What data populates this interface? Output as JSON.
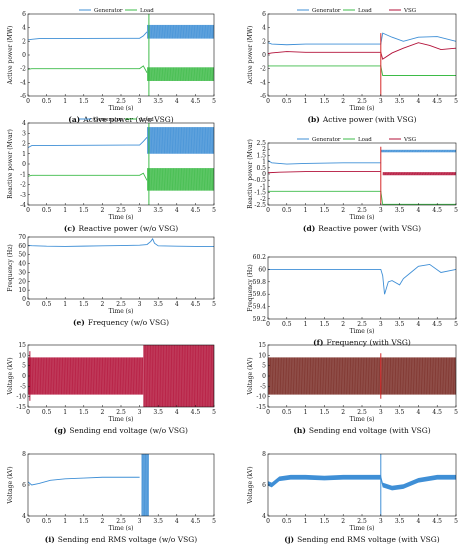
{
  "colors": {
    "generator": "#3f8fd6",
    "load": "#3dbb48",
    "vsg": "#b3123a",
    "voltage_dark": "#7a2b25",
    "marker": "#d62728",
    "axis": "#111111"
  },
  "chart_data": [
    {
      "id": "a",
      "type": "line",
      "caption_letter": "(a)",
      "caption_text": "Active power (w/o VSG)",
      "xlabel": "Time (s)",
      "ylabel": "Active power (MW)",
      "xlim": [
        0,
        5
      ],
      "ylim": [
        -6,
        6
      ],
      "xticks": [
        "0",
        "0.5",
        "1",
        "1.5",
        "2",
        "2.5",
        "3",
        "3.5",
        "4",
        "4.5",
        "5"
      ],
      "yticks": [
        "-6",
        "-4",
        "-2",
        "0",
        "2",
        "4",
        "6"
      ],
      "legend": [
        "Generator",
        "Load"
      ],
      "series": [
        {
          "name": "Generator",
          "color_key": "generator",
          "x": [
            0,
            0.1,
            0.3,
            3.0,
            3.1,
            3.2
          ],
          "y": [
            2.2,
            2.3,
            2.4,
            2.45,
            2.8,
            3.4
          ],
          "band": {
            "x0": 3.2,
            "x1": 5,
            "lo": 2.4,
            "hi": 4.4
          }
        },
        {
          "name": "Load",
          "color_key": "load",
          "x": [
            0,
            0.1,
            3.0,
            3.1,
            3.2
          ],
          "y": [
            -2.1,
            -2.0,
            -2.0,
            -1.6,
            -2.6
          ],
          "band": {
            "x0": 3.2,
            "x1": 5,
            "lo": -3.8,
            "hi": -1.8
          }
        }
      ],
      "spikes": [
        {
          "x": 3.25,
          "lo": -6,
          "hi": 6,
          "color_key": "load"
        }
      ]
    },
    {
      "id": "b",
      "type": "line",
      "caption_letter": "(b)",
      "caption_text": "Active power (with VSG)",
      "xlabel": "Time (s)",
      "ylabel": "Active power (MW)",
      "xlim": [
        0,
        5
      ],
      "ylim": [
        -6,
        6
      ],
      "xticks": [
        "0",
        "0.5",
        "1",
        "1.5",
        "2",
        "2.5",
        "3",
        "3.5",
        "4",
        "4.5",
        "5"
      ],
      "yticks": [
        "-6",
        "-4",
        "-2",
        "0",
        "2",
        "4",
        "6"
      ],
      "legend": [
        "Generator",
        "Load",
        "VSG"
      ],
      "series": [
        {
          "name": "Generator",
          "color_key": "generator",
          "x": [
            0,
            0.1,
            0.5,
            1,
            2,
            3.0,
            3.05,
            3.3,
            3.6,
            4,
            4.5,
            5
          ],
          "y": [
            1.8,
            1.6,
            1.5,
            1.6,
            1.6,
            1.6,
            3.2,
            2.6,
            2.0,
            2.6,
            2.7,
            2.0
          ],
          "band": null
        },
        {
          "name": "Load",
          "color_key": "load",
          "x": [
            0,
            3.0,
            3.05,
            5
          ],
          "y": [
            -1.6,
            -1.6,
            -3.0,
            -3.0
          ],
          "band": null
        },
        {
          "name": "VSG",
          "color_key": "vsg",
          "x": [
            0,
            0.1,
            0.5,
            1,
            2,
            3.0,
            3.05,
            3.3,
            3.6,
            4,
            4.3,
            4.6,
            5
          ],
          "y": [
            0.2,
            0.3,
            0.5,
            0.4,
            0.4,
            0.4,
            -0.6,
            0.3,
            1.0,
            1.8,
            1.4,
            0.8,
            1.0
          ],
          "band": null
        }
      ],
      "spikes": [
        {
          "x": 3.0,
          "lo": -6,
          "hi": 3.2,
          "color_key": "marker"
        }
      ]
    },
    {
      "id": "c",
      "type": "line",
      "caption_letter": "(c)",
      "caption_text": "Reactive power (w/o VSG)",
      "xlabel": "Time (s)",
      "ylabel": "Reactive power (Mvar)",
      "xlim": [
        0,
        5
      ],
      "ylim": [
        -4,
        4
      ],
      "xticks": [
        "0",
        "0.5",
        "1",
        "1.5",
        "2",
        "2.5",
        "3",
        "3.5",
        "4",
        "4.5",
        "5"
      ],
      "yticks": [
        "-4",
        "-3",
        "-2",
        "-1",
        "0",
        "1",
        "2",
        "3",
        "4"
      ],
      "legend": [
        "Generator",
        "Load"
      ],
      "series": [
        {
          "name": "Generator",
          "color_key": "generator",
          "x": [
            0,
            0.1,
            3.0,
            3.1,
            3.2
          ],
          "y": [
            1.6,
            1.8,
            1.85,
            2.2,
            2.6
          ],
          "band": {
            "x0": 3.2,
            "x1": 5,
            "lo": 1.0,
            "hi": 3.6
          }
        },
        {
          "name": "Load",
          "color_key": "load",
          "x": [
            0,
            0.1,
            3.0,
            3.1,
            3.2
          ],
          "y": [
            -1.2,
            -1.1,
            -1.1,
            -0.9,
            -1.6
          ],
          "band": {
            "x0": 3.2,
            "x1": 5,
            "lo": -2.6,
            "hi": -0.4
          }
        }
      ],
      "spikes": [
        {
          "x": 3.25,
          "lo": -4,
          "hi": 4,
          "color_key": "load"
        }
      ]
    },
    {
      "id": "d",
      "type": "line",
      "caption_letter": "(d)",
      "caption_text": "Reactive power (with VSG)",
      "xlabel": "Time (s)",
      "ylabel": "Reactive power (Mvar)",
      "xlim": [
        0,
        5
      ],
      "ylim": [
        -2.5,
        2.5
      ],
      "xticks": [
        "0",
        "0.5",
        "1",
        "1.5",
        "2",
        "2.5",
        "3",
        "3.5",
        "4",
        "4.5",
        "5"
      ],
      "yticks": [
        "-2.5",
        "-2",
        "-1.5",
        "-1",
        "-0.5",
        "0",
        "0.5",
        "1",
        "1.5",
        "2",
        "2.5"
      ],
      "legend": [
        "Generator",
        "Load",
        "VSG"
      ],
      "series": [
        {
          "name": "Generator",
          "color_key": "generator",
          "x": [
            0,
            0.1,
            0.5,
            1,
            2,
            3.0
          ],
          "y": [
            1.1,
            0.9,
            0.8,
            0.85,
            0.9,
            0.9
          ],
          "band": {
            "x0": 3.0,
            "x1": 5,
            "lo": 1.75,
            "hi": 1.95
          }
        },
        {
          "name": "Load",
          "color_key": "load",
          "x": [
            0,
            3.0,
            3.05,
            5
          ],
          "y": [
            -1.4,
            -1.4,
            -2.45,
            -2.45
          ],
          "band": null
        },
        {
          "name": "VSG",
          "color_key": "vsg",
          "x": [
            0,
            0.3,
            1,
            2,
            3.0
          ],
          "y": [
            0.1,
            0.15,
            0.2,
            0.2,
            0.2
          ],
          "band": {
            "x0": 3.05,
            "x1": 5,
            "lo": -0.1,
            "hi": 0.15
          }
        }
      ],
      "spikes": [
        {
          "x": 3.0,
          "lo": -2.5,
          "hi": 2.2,
          "color_key": "marker"
        }
      ]
    },
    {
      "id": "e",
      "type": "line",
      "caption_letter": "(e)",
      "caption_text": "Frequency (w/o VSG)",
      "xlabel": "Time (s)",
      "ylabel": "Frequency (Hz)",
      "xlim": [
        0,
        5
      ],
      "ylim": [
        0,
        70
      ],
      "xticks": [
        "0",
        "0.5",
        "1",
        "1.5",
        "2",
        "2.5",
        "3",
        "3.5",
        "4",
        "4.5",
        "5"
      ],
      "yticks": [
        "0",
        "10",
        "20",
        "30",
        "40",
        "50",
        "60",
        "70"
      ],
      "legend": [],
      "series": [
        {
          "name": "",
          "color_key": "generator",
          "x": [
            0,
            0.1,
            0.5,
            1.0,
            1.5,
            2.0,
            2.5,
            3.0,
            3.2,
            3.3,
            3.35,
            3.4,
            3.5,
            4.0,
            4.5,
            5.0
          ],
          "y": [
            60.5,
            60.2,
            59.6,
            59.4,
            59.7,
            60.0,
            60.3,
            60.8,
            61.5,
            65,
            68,
            63,
            60,
            59.6,
            59.4,
            59.2
          ],
          "band": null
        }
      ],
      "spikes": []
    },
    {
      "id": "f",
      "type": "line",
      "caption_letter": "(f)",
      "caption_text": "Frequency (with VSG)",
      "xlabel": "Time (s)",
      "ylabel": "Frequency (Hz)",
      "xlim": [
        0,
        5
      ],
      "ylim": [
        59.2,
        60.2
      ],
      "xticks": [
        "0",
        "0.5",
        "1",
        "1.5",
        "2",
        "2.5",
        "3",
        "3.5",
        "4",
        "4.5",
        "5"
      ],
      "yticks": [
        "59.2",
        "59.4",
        "59.6",
        "59.8",
        "60",
        "60.2"
      ],
      "legend": [],
      "series": [
        {
          "name": "",
          "color_key": "generator",
          "x": [
            0,
            0.5,
            1,
            2,
            3.0,
            3.05,
            3.1,
            3.2,
            3.3,
            3.5,
            3.6,
            3.8,
            4.0,
            4.3,
            4.6,
            5.0
          ],
          "y": [
            60.0,
            60.0,
            60.0,
            60.0,
            60.0,
            59.9,
            59.6,
            59.8,
            59.82,
            59.75,
            59.85,
            59.95,
            60.05,
            60.08,
            59.95,
            60.0
          ],
          "band": null
        }
      ],
      "spikes": []
    },
    {
      "id": "g",
      "type": "area",
      "caption_letter": "(g)",
      "caption_text": "Sending end voltage (w/o VSG)",
      "xlabel": "Time (s)",
      "ylabel": "Voltage (kV)",
      "xlim": [
        0,
        5
      ],
      "ylim": [
        -15,
        15
      ],
      "xticks": [
        "0",
        "0.5",
        "1",
        "1.5",
        "2",
        "2.5",
        "3",
        "3.5",
        "4",
        "4.5",
        "5"
      ],
      "yticks": [
        "-15",
        "-10",
        "-5",
        "0",
        "5",
        "10",
        "15"
      ],
      "legend": [],
      "series": [
        {
          "name": "",
          "color_key": "vsg",
          "x": [
            0,
            3.1
          ],
          "y": [
            9,
            9
          ],
          "band": {
            "x0": 0,
            "x1": 3.1,
            "lo": -9,
            "hi": 9
          }
        },
        {
          "name": "",
          "color_key": "vsg",
          "x": [
            3.1,
            5
          ],
          "y": [
            15,
            15
          ],
          "band": {
            "x0": 3.1,
            "x1": 5,
            "lo": -15,
            "hi": 15
          }
        }
      ],
      "spikes": [
        {
          "x": 0.05,
          "lo": -12,
          "hi": 12,
          "color_key": "vsg"
        }
      ]
    },
    {
      "id": "h",
      "type": "area",
      "caption_letter": "(h)",
      "caption_text": "Sending end voltage (with VSG)",
      "xlabel": "Time (s)",
      "ylabel": "Voltage (kV)",
      "xlim": [
        0,
        5
      ],
      "ylim": [
        -15,
        15
      ],
      "xticks": [
        "0",
        "0.5",
        "1",
        "1.5",
        "2",
        "2.5",
        "3",
        "3.5",
        "4",
        "4.5",
        "5"
      ],
      "yticks": [
        "-15",
        "-10",
        "-5",
        "0",
        "5",
        "10",
        "15"
      ],
      "legend": [],
      "series": [
        {
          "name": "",
          "color_key": "voltage_dark",
          "x": [
            0,
            5
          ],
          "y": [
            9,
            9
          ],
          "band": {
            "x0": 0,
            "x1": 5,
            "lo": -9,
            "hi": 9
          }
        }
      ],
      "spikes": [
        {
          "x": 3.0,
          "lo": -11,
          "hi": 11,
          "color_key": "marker"
        }
      ]
    },
    {
      "id": "i",
      "type": "line",
      "caption_letter": "(i)",
      "caption_text": "Sending end RMS voltage (w/o VSG)",
      "xlabel": "Time (s)",
      "ylabel": "Voltage (kV)",
      "xlim": [
        0,
        5
      ],
      "ylim": [
        4,
        8
      ],
      "xticks": [
        "0",
        "0.5",
        "1",
        "1.5",
        "2",
        "2.5",
        "3",
        "3.5",
        "4",
        "4.5",
        "5"
      ],
      "yticks": [
        "4",
        "6",
        "8"
      ],
      "legend": [],
      "series": [
        {
          "name": "",
          "color_key": "generator",
          "x": [
            0,
            0.1,
            0.3,
            0.6,
            1.0,
            1.5,
            2.0,
            2.5,
            3.0
          ],
          "y": [
            6.2,
            6.0,
            6.1,
            6.3,
            6.4,
            6.45,
            6.5,
            6.5,
            6.5
          ],
          "band": {
            "x0": 3.05,
            "x1": 3.25,
            "lo": 4,
            "hi": 8
          }
        }
      ],
      "spikes": []
    },
    {
      "id": "j",
      "type": "line",
      "caption_letter": "(j)",
      "caption_text": "Sending end RMS voltage (with VSG)",
      "xlabel": "Time (s)",
      "ylabel": "Voltage (kV)",
      "xlim": [
        0,
        5
      ],
      "ylim": [
        4,
        8
      ],
      "xticks": [
        "0",
        "0.5",
        "1",
        "1.5",
        "2",
        "2.5",
        "3",
        "3.5",
        "4",
        "4.5",
        "5"
      ],
      "yticks": [
        "4",
        "6",
        "8"
      ],
      "legend": [],
      "series": [
        {
          "name": "",
          "color_key": "generator",
          "x": [
            0,
            0.1,
            0.3,
            0.6,
            1.0,
            1.5,
            2.0,
            2.5,
            3.0,
            3.05,
            3.3,
            3.6,
            4.0,
            4.5,
            5.0
          ],
          "y": [
            6.1,
            6.0,
            6.4,
            6.5,
            6.5,
            6.45,
            6.5,
            6.5,
            6.5,
            6.0,
            5.8,
            5.9,
            6.3,
            6.5,
            6.5
          ],
          "band": {
            "x0": 0,
            "x1": 5,
            "lo": -0.15,
            "hi": 0.15,
            "relative": true
          }
        }
      ],
      "spikes": [
        {
          "x": 3.0,
          "lo": 4,
          "hi": 8,
          "color_key": "generator"
        }
      ]
    }
  ]
}
